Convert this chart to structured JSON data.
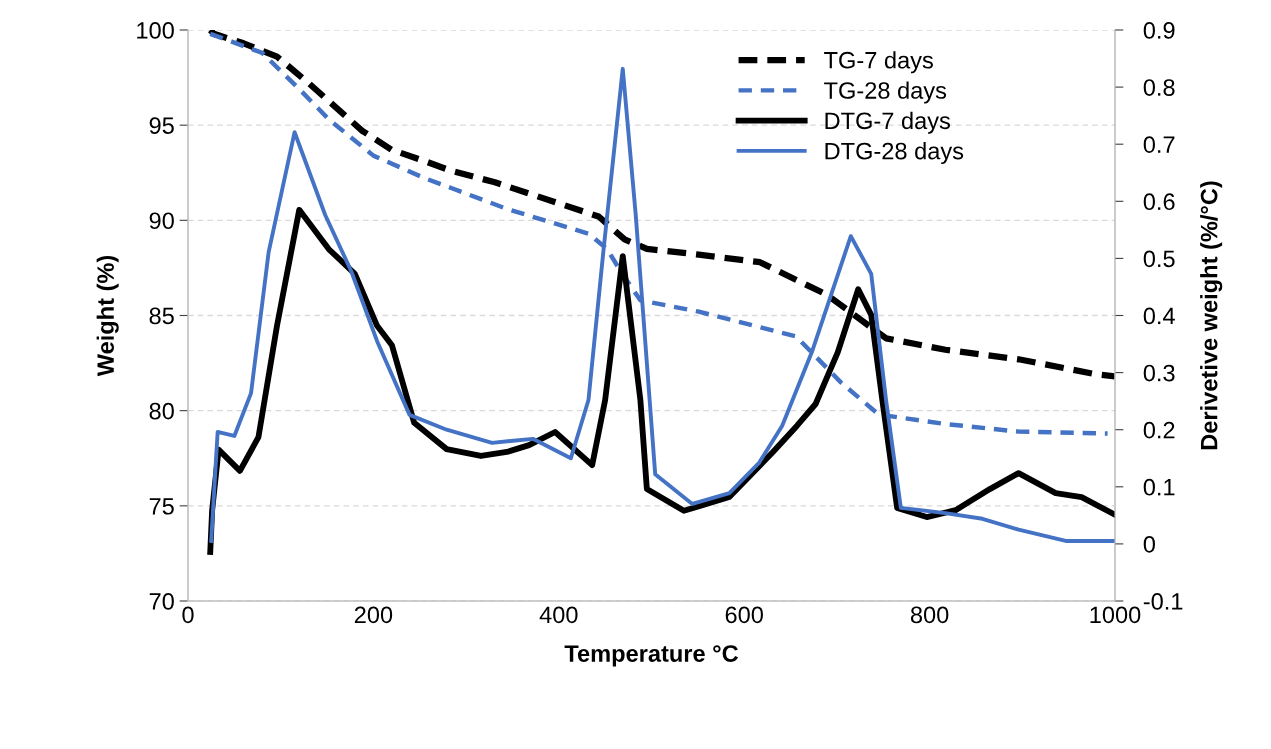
{
  "chart_data": {
    "type": "line",
    "xlabel": "Temperature °C",
    "ylabel": "Weight (%)",
    "y2label": "Derivetive weight (%/°C)",
    "xlim": [
      0,
      1000
    ],
    "xticks": [
      0,
      200,
      400,
      600,
      800,
      1000
    ],
    "ylim": [
      70,
      100
    ],
    "yticks": [
      70,
      75,
      80,
      85,
      90,
      95,
      100
    ],
    "y2lim": [
      -0.1,
      0.9
    ],
    "y2ticks": [
      -0.1,
      0,
      0.1,
      0.2,
      0.3,
      0.4,
      0.5,
      0.6,
      0.7,
      0.8,
      0.9
    ],
    "grid": "y",
    "legend": "top right",
    "marker": "none",
    "series": [
      {
        "name": "TG-7 days",
        "color": "#000000",
        "line_style": "dashed",
        "x": [
          24,
          28,
          60,
          96,
          128,
          188,
          220,
          256,
          284,
          331,
          443,
          471,
          495,
          551,
          617,
          659,
          689,
          725,
          753,
          817,
          896,
          981,
          1000
        ],
        "values": [
          100,
          99.8,
          99.3,
          98.6,
          97.3,
          94.7,
          93.7,
          93.1,
          92.6,
          92.0,
          90.2,
          89.0,
          88.5,
          88.2,
          87.8,
          86.8,
          86.1,
          84.8,
          83.8,
          83.2,
          82.7,
          81.9,
          81.8
        ]
      },
      {
        "name": "TG-28 days",
        "color": "#4472c4",
        "line_style": "dashed",
        "x": [
          24,
          80,
          120,
          152,
          200,
          256,
          284,
          344,
          432,
          452,
          467,
          488,
          551,
          616,
          656,
          704,
          745,
          817,
          896,
          992
        ],
        "values": [
          99.8,
          98.8,
          96.9,
          95.3,
          93.4,
          92.2,
          91.7,
          90.6,
          89.3,
          88.5,
          87.3,
          85.8,
          85.2,
          84.4,
          83.9,
          81.5,
          79.8,
          79.3,
          78.9,
          78.8
        ]
      },
      {
        "name": "DTG-7 days",
        "color": "#000000",
        "axis": "y2",
        "line_style": "solid",
        "x": [
          24,
          26,
          33,
          56,
          76,
          96,
          120,
          152,
          180,
          204,
          220,
          244,
          279,
          316,
          344,
          368,
          396,
          436,
          450,
          469,
          488,
          495,
          535,
          584,
          631,
          657,
          677,
          701,
          723,
          737,
          749,
          765,
          797,
          828,
          865,
          896,
          936,
          964,
          1000
        ],
        "values": [
          -0.014,
          0.058,
          0.165,
          0.128,
          0.187,
          0.382,
          0.585,
          0.516,
          0.473,
          0.382,
          0.348,
          0.212,
          0.166,
          0.154,
          0.161,
          0.173,
          0.196,
          0.138,
          0.252,
          0.504,
          0.252,
          0.096,
          0.058,
          0.082,
          0.161,
          0.207,
          0.245,
          0.336,
          0.446,
          0.401,
          0.252,
          0.063,
          0.047,
          0.059,
          0.096,
          0.124,
          0.089,
          0.082,
          0.051
        ]
      },
      {
        "name": "DTG-28 days",
        "color": "#4472c4",
        "axis": "y2",
        "line_style": "solid",
        "x": [
          25,
          32,
          50,
          68,
          87,
          115,
          148,
          176,
          204,
          239,
          279,
          328,
          372,
          413,
          432,
          448,
          469,
          483,
          504,
          544,
          584,
          616,
          641,
          673,
          715,
          737,
          753,
          769,
          817,
          857,
          896,
          948,
          1000
        ],
        "values": [
          0.005,
          0.196,
          0.189,
          0.264,
          0.511,
          0.721,
          0.576,
          0.478,
          0.355,
          0.226,
          0.2,
          0.177,
          0.184,
          0.15,
          0.252,
          0.511,
          0.832,
          0.576,
          0.122,
          0.07,
          0.089,
          0.142,
          0.207,
          0.336,
          0.539,
          0.473,
          0.252,
          0.063,
          0.054,
          0.044,
          0.025,
          0.005,
          0.005
        ]
      }
    ]
  }
}
